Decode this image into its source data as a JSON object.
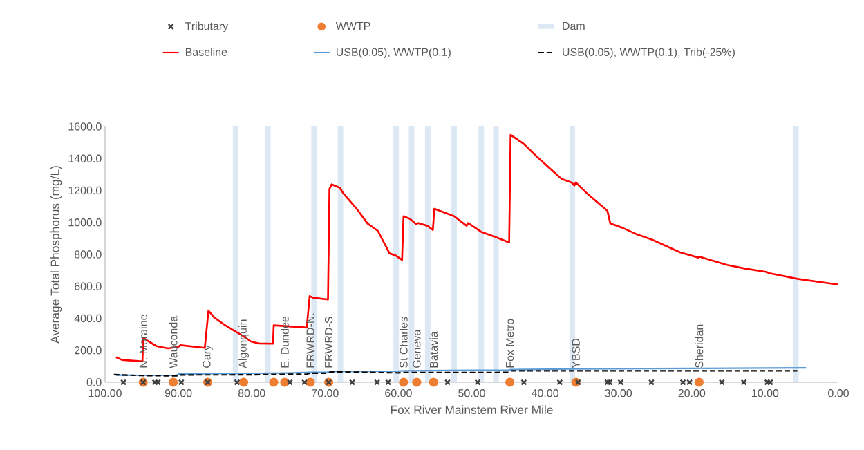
{
  "chart_data": {
    "type": "line",
    "xlabel": "Fox River Mainstem River Mile",
    "ylabel": "Average Total Phosphorus (mg/L)",
    "xlim": [
      100,
      0
    ],
    "ylim": [
      0,
      1600
    ],
    "xticks": [
      {
        "value": 100,
        "label": "100.00"
      },
      {
        "value": 90,
        "label": "90.00"
      },
      {
        "value": 80,
        "label": "80.00"
      },
      {
        "value": 70,
        "label": "70.00"
      },
      {
        "value": 60,
        "label": "60.00"
      },
      {
        "value": 50,
        "label": "50.00"
      },
      {
        "value": 40,
        "label": "40.00"
      },
      {
        "value": 30,
        "label": "30.00"
      },
      {
        "value": 20,
        "label": "20.00"
      },
      {
        "value": 10,
        "label": "10.00"
      },
      {
        "value": 0,
        "label": "0.00"
      }
    ],
    "yticks": [
      {
        "value": 0,
        "label": "0.0"
      },
      {
        "value": 200,
        "label": "200.0"
      },
      {
        "value": 400,
        "label": "400.0"
      },
      {
        "value": 600,
        "label": "600.0"
      },
      {
        "value": 800,
        "label": "800.0"
      },
      {
        "value": 1000,
        "label": "1000.0"
      },
      {
        "value": 1200,
        "label": "1200.0"
      },
      {
        "value": 1400,
        "label": "1400.0"
      },
      {
        "value": 1600,
        "label": "1600.0"
      }
    ],
    "legend": "top",
    "series": [
      {
        "name": "Tributary",
        "type": "scatter",
        "marker": "cross",
        "color": "#404040",
        "x": [
          97.5,
          94.8,
          93.2,
          92.8,
          89.6,
          86.0,
          82.0,
          74.8,
          72.8,
          69.5,
          66.3,
          62.9,
          61.4,
          53.3,
          49.2,
          42.9,
          38.0,
          35.5,
          31.5,
          31.2,
          29.7,
          25.5,
          21.2,
          20.3,
          15.9,
          12.9,
          9.7,
          9.3
        ],
        "values": [
          0,
          0,
          0,
          0,
          0,
          0,
          0,
          0,
          0,
          0,
          0,
          0,
          0,
          0,
          0,
          0,
          0,
          0,
          0,
          0,
          0,
          0,
          0,
          0,
          0,
          0,
          0,
          0
        ]
      },
      {
        "name": "WWTP",
        "type": "scatter",
        "marker": "circle",
        "color": "#ed7d31",
        "x": [
          94.8,
          90.7,
          86.0,
          81.1,
          77.0,
          75.5,
          72.0,
          69.5,
          59.3,
          57.5,
          55.2,
          44.8,
          35.8,
          19.0
        ],
        "values": [
          0,
          0,
          0,
          0,
          0,
          0,
          0,
          0,
          0,
          0,
          0,
          0,
          0,
          0
        ],
        "value_labels": [
          "N. Moraine",
          "Wauconda",
          "Cary",
          "Algonquin",
          null,
          "E. Dundee",
          "FRWRD-N.",
          "FRWRD-S.",
          "St Charles",
          "Geneva",
          "Batavia",
          "Fox Metro",
          "YBSD",
          "Sheridan"
        ]
      },
      {
        "name": "Dam",
        "type": "bar",
        "color": "#dde8f5",
        "x": [
          82.2,
          77.8,
          71.5,
          67.9,
          60.3,
          58.2,
          56.0,
          52.4,
          48.7,
          46.7,
          36.3,
          5.8
        ],
        "values": [
          1600,
          1600,
          1600,
          1600,
          1600,
          1600,
          1600,
          1600,
          1600,
          1600,
          1600,
          1600
        ]
      },
      {
        "name": "Baseline",
        "color": "#ff0000",
        "x": [
          98.5,
          97.7,
          95.2,
          94.9,
          94.8,
          94.4,
          93.0,
          91.4,
          90.0,
          89.7,
          86.4,
          85.9,
          85.1,
          83.7,
          82.4,
          81.2,
          80.1,
          79.1,
          77.1,
          77.0,
          72.5,
          72.1,
          71.6,
          69.6,
          69.4,
          69.1,
          68.0,
          67.5,
          66.4,
          65.6,
          64.2,
          62.8,
          61.2,
          60.4,
          59.5,
          59.3,
          58.4,
          57.6,
          57.3,
          56.05,
          55.3,
          55.1,
          52.4,
          50.7,
          50.5,
          48.7,
          46.8,
          44.9,
          44.7,
          43.0,
          41.1,
          37.8,
          36.4,
          36.0,
          35.8,
          34.2,
          31.5,
          31.1,
          29.5,
          27.6,
          25.4,
          21.6,
          19.1,
          19.0,
          15.2,
          12.8,
          9.9,
          9.4,
          5.6,
          0.0
        ],
        "values": [
          157,
          140,
          131,
          131,
          280,
          265,
          226,
          212,
          222,
          232,
          215,
          448,
          405,
          359,
          323,
          290,
          255,
          243,
          241,
          356,
          342,
          539,
          529,
          518,
          1209,
          1238,
          1217,
          1181,
          1123,
          1080,
          993,
          947,
          806,
          794,
          765,
          1039,
          1022,
          990,
          996,
          979,
          953,
          1085,
          1039,
          979,
          996,
          941,
          909,
          875,
          1548,
          1495,
          1411,
          1274,
          1250,
          1231,
          1250,
          1178,
          1072,
          993,
          967,
          928,
          892,
          813,
          780,
          786,
          734,
          712,
          691,
          682,
          647,
          611
        ]
      },
      {
        "name": "USB(0.05), WWTP(0.1)",
        "color": "#5b9bd5",
        "x": [
          98.5,
          95,
          90.2,
          90.0,
          85,
          80,
          75,
          72,
          69.5,
          69.3,
          60,
          59.3,
          50,
          45,
          44.7,
          36,
          31,
          20,
          10,
          4.4
        ],
        "values": [
          45,
          43,
          44,
          52,
          54,
          56,
          58,
          62,
          64,
          68,
          70,
          72,
          75,
          77,
          80,
          83,
          85,
          87,
          89,
          90
        ]
      },
      {
        "name": "USB(0.05), WWTP(0.1), Trib(-25%)",
        "line_style": "dashed",
        "color": "#000000",
        "x": [
          98.8,
          95,
          90,
          89.8,
          80,
          75,
          72.5,
          72,
          69.6,
          69.2,
          60,
          59.3,
          45,
          44.6,
          36,
          5.6
        ],
        "values": [
          48,
          42,
          40,
          46,
          47,
          50,
          51,
          57,
          57,
          66,
          59,
          61,
          62,
          72,
          72,
          72
        ]
      }
    ]
  }
}
